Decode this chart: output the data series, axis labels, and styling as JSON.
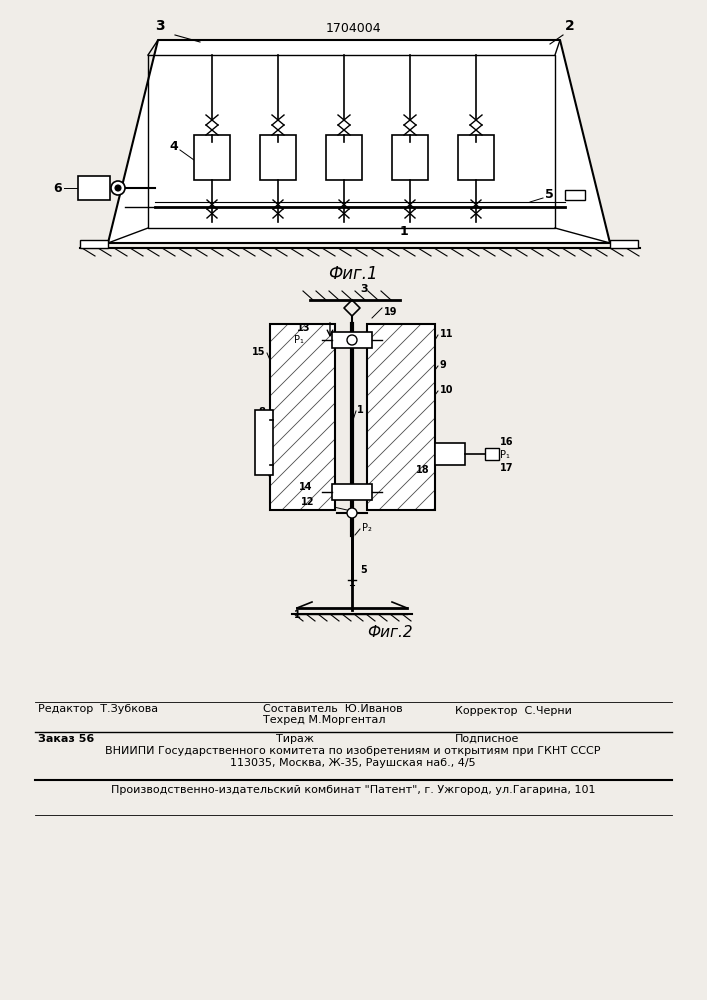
{
  "patent_number": "1704004",
  "bg_color": "#f0ede8",
  "fig1_caption": "Фиг.1",
  "fig2_caption": "Фиг.2",
  "footer_line1_left": "Редактор  Т.Зубкова",
  "footer_line1_mid_top": "Составитель  Ю.Иванов",
  "footer_line1_mid_bot": "Техред М.Моргентал",
  "footer_line1_right": "Корректор  С.Черни",
  "footer_line2_left": "Заказ 56",
  "footer_line2_mid": "Тираж",
  "footer_line2_right": "Подписное",
  "footer_line3": "ВНИИПИ Государственного комитета по изобретениям и открытиям при ГКНТ СССР",
  "footer_line4": "113035, Москва, Ж-35, Раушская наб., 4/5",
  "footer_line5": "Производственно-издательский комбинат \"Патент\", г. Ужгород, ул.Гагарина, 101"
}
